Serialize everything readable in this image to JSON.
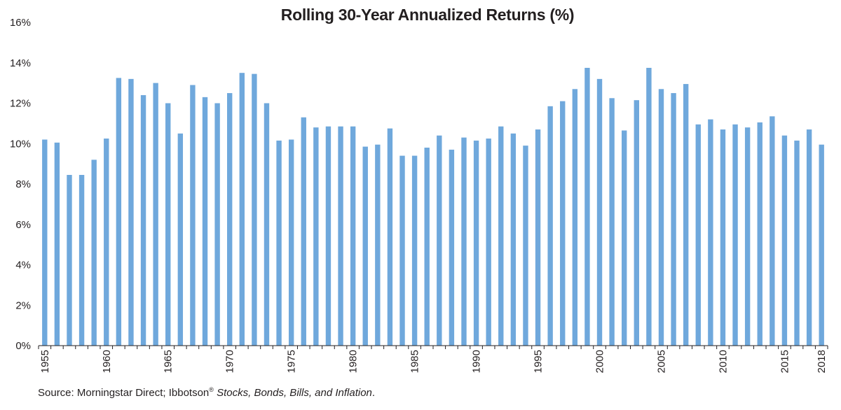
{
  "chart_data": {
    "type": "bar",
    "title": "Rolling 30-Year Annualized Returns (%)",
    "xlabel": "",
    "ylabel": "",
    "ylim": [
      0,
      16
    ],
    "y_ticks": [
      "0%",
      "2%",
      "4%",
      "6%",
      "8%",
      "10%",
      "12%",
      "14%",
      "16%"
    ],
    "x_tick_labels": [
      "1955",
      "1960",
      "1965",
      "1970",
      "1975",
      "1980",
      "1985",
      "1990",
      "1995",
      "2000",
      "2005",
      "2010",
      "2015",
      "2018"
    ],
    "bar_color": "#6fa8dc",
    "grid": false,
    "legend": "none",
    "categories": [
      "1955",
      "1956",
      "1957",
      "1958",
      "1959",
      "1960",
      "1961",
      "1962",
      "1963",
      "1964",
      "1965",
      "1966",
      "1967",
      "1968",
      "1969",
      "1970",
      "1971",
      "1972",
      "1973",
      "1974",
      "1975",
      "1976",
      "1977",
      "1978",
      "1979",
      "1980",
      "1981",
      "1982",
      "1983",
      "1984",
      "1985",
      "1986",
      "1987",
      "1988",
      "1989",
      "1990",
      "1991",
      "1992",
      "1993",
      "1994",
      "1995",
      "1996",
      "1997",
      "1998",
      "1999",
      "2000",
      "2001",
      "2002",
      "2003",
      "2004",
      "2005",
      "2006",
      "2007",
      "2008",
      "2009",
      "2010",
      "2011",
      "2012",
      "2013",
      "2014",
      "2015",
      "2016",
      "2017",
      "2018"
    ],
    "values": [
      10.2,
      10.05,
      8.45,
      8.45,
      9.2,
      10.25,
      13.25,
      13.2,
      12.4,
      13.0,
      12.0,
      10.5,
      12.9,
      12.3,
      12.0,
      12.5,
      13.5,
      13.45,
      12.0,
      10.15,
      10.2,
      11.3,
      10.8,
      10.85,
      10.85,
      10.85,
      9.85,
      9.95,
      10.75,
      9.4,
      9.4,
      9.8,
      10.4,
      9.7,
      10.3,
      10.15,
      10.25,
      10.85,
      10.5,
      9.9,
      10.7,
      11.85,
      12.1,
      12.7,
      13.75,
      13.2,
      12.25,
      10.65,
      12.15,
      13.75,
      12.7,
      12.5,
      12.95,
      10.95,
      11.2,
      10.7,
      10.95,
      10.8,
      11.05,
      11.35,
      10.4,
      10.15,
      10.7,
      9.95
    ]
  },
  "footer": {
    "source_prefix": "Source: Morningstar Direct; Ibbotson",
    "registered_mark": "®",
    "source_italic": "Stocks, Bonds, Bills, and Inflation",
    "source_suffix": "."
  }
}
